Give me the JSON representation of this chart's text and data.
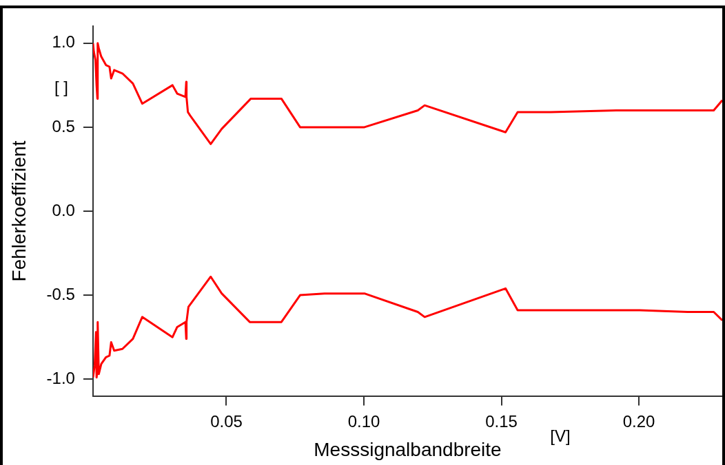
{
  "chart_data": {
    "type": "line",
    "xlabel": "Messsignalbandbreite",
    "ylabel": "Fehlerkoeffizient",
    "annotations": [
      "[ ]",
      "[V]"
    ],
    "xlim": [
      0.0015,
      0.2303
    ],
    "ylim": [
      -1.1,
      1.1
    ],
    "xticks": [
      0.05,
      {
        "value": 0.1,
        "label": "0.10"
      },
      0.15,
      {
        "value": 0.2,
        "label": "0.20"
      }
    ],
    "yticks": [
      {
        "value": -1,
        "label": "-1.0"
      },
      -0.5,
      {
        "value": 0,
        "label": "0.0"
      },
      0.5,
      {
        "value": 1,
        "label": "1.0"
      }
    ],
    "grid": false,
    "legend": false,
    "marker": "none",
    "line_style": "solid",
    "series": [
      {
        "color": "#ff0000",
        "x": [
          0.0015,
          0.0018,
          0.0024,
          0.0028,
          0.0031,
          0.0032,
          0.0036,
          0.0045,
          0.0062,
          0.0075,
          0.0081,
          0.0092,
          0.0122,
          0.016,
          0.0194,
          0.0304,
          0.0321,
          0.0351,
          0.0354,
          0.0355,
          0.036,
          0.0368,
          0.0443,
          0.0483,
          0.0589,
          0.07,
          0.0768,
          0.0936,
          0.1002,
          0.1196,
          0.1221,
          0.1515,
          0.1559,
          0.1679,
          0.1918,
          0.2272,
          0.2303
        ],
        "values": [
          1.0,
          0.95,
          0.9,
          0.75,
          0.67,
          1.0,
          0.97,
          0.92,
          0.87,
          0.86,
          0.79,
          0.84,
          0.82,
          0.76,
          0.64,
          0.75,
          0.7,
          0.68,
          0.77,
          0.68,
          0.59,
          0.57,
          0.4,
          0.49,
          0.67,
          0.67,
          0.5,
          0.5,
          0.5,
          0.6,
          0.63,
          0.47,
          0.59,
          0.59,
          0.6,
          0.6,
          0.66
        ]
      },
      {
        "color": "#ff0000",
        "x": [
          0.0015,
          0.0021,
          0.0026,
          0.0028,
          0.0031,
          0.0032,
          0.0036,
          0.0045,
          0.0062,
          0.0075,
          0.0081,
          0.0092,
          0.0122,
          0.016,
          0.0194,
          0.0304,
          0.0321,
          0.0351,
          0.0354,
          0.0355,
          0.0362,
          0.0443,
          0.0483,
          0.0585,
          0.07,
          0.0768,
          0.0857,
          0.1002,
          0.1196,
          0.1221,
          0.1515,
          0.1559,
          0.186,
          0.2003,
          0.2177,
          0.2272,
          0.2303
        ],
        "values": [
          -0.99,
          -0.92,
          -0.72,
          -0.99,
          -0.95,
          -0.66,
          -0.97,
          -0.91,
          -0.87,
          -0.86,
          -0.78,
          -0.83,
          -0.82,
          -0.76,
          -0.63,
          -0.75,
          -0.69,
          -0.66,
          -0.76,
          -0.66,
          -0.57,
          -0.39,
          -0.49,
          -0.66,
          -0.66,
          -0.5,
          -0.49,
          -0.49,
          -0.6,
          -0.63,
          -0.46,
          -0.59,
          -0.59,
          -0.59,
          -0.6,
          -0.6,
          -0.65
        ]
      }
    ]
  }
}
